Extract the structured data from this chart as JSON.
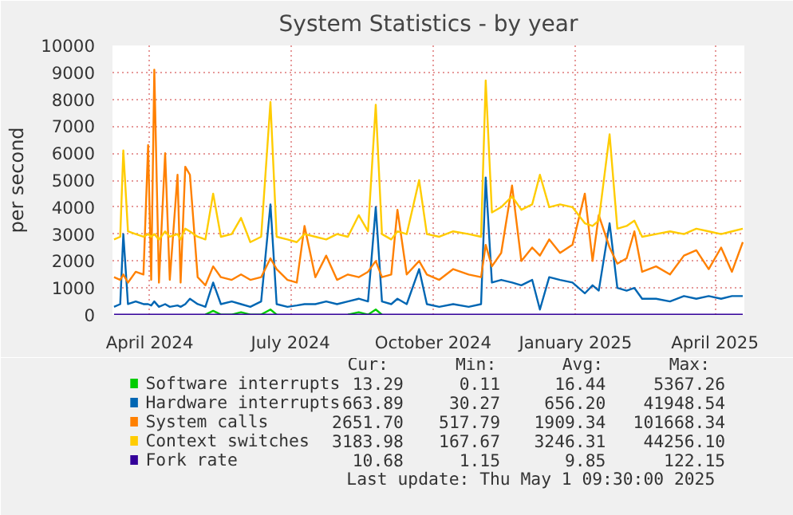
{
  "chart_data": {
    "type": "line",
    "title": "System Statistics - by year",
    "ylabel": "per second",
    "x": [
      "2024-03-09",
      "2024-03-13",
      "2024-03-15",
      "2024-03-18",
      "2024-03-23",
      "2024-03-28",
      "2024-03-31",
      "2024-04-02",
      "2024-04-04",
      "2024-04-07",
      "2024-04-11",
      "2024-04-14",
      "2024-04-19",
      "2024-04-21",
      "2024-04-24",
      "2024-04-27",
      "2024-05-02",
      "2024-05-07",
      "2024-05-12",
      "2024-05-17",
      "2024-05-24",
      "2024-05-30",
      "2024-06-05",
      "2024-06-12",
      "2024-06-18",
      "2024-06-22",
      "2024-06-29",
      "2024-07-05",
      "2024-07-10",
      "2024-07-17",
      "2024-07-24",
      "2024-07-31",
      "2024-08-07",
      "2024-08-14",
      "2024-08-20",
      "2024-08-25",
      "2024-08-29",
      "2024-09-04",
      "2024-09-08",
      "2024-09-14",
      "2024-09-22",
      "2024-09-27",
      "2024-10-05",
      "2024-10-14",
      "2024-10-24",
      "2024-11-01",
      "2024-11-04",
      "2024-11-08",
      "2024-11-14",
      "2024-11-21",
      "2024-11-27",
      "2024-12-04",
      "2024-12-09",
      "2024-12-15",
      "2024-12-22",
      "2024-12-30",
      "2025-01-07",
      "2025-01-12",
      "2025-01-16",
      "2025-01-23",
      "2025-01-28",
      "2025-02-03",
      "2025-02-08",
      "2025-02-13",
      "2025-02-22",
      "2025-03-03",
      "2025-03-12",
      "2025-03-20",
      "2025-03-28",
      "2025-04-05",
      "2025-04-12",
      "2025-04-19"
    ],
    "series": [
      {
        "name": "Software interrupts",
        "color": "#00cc00",
        "x": [
          "2024-05-07",
          "2024-05-12",
          "2024-05-17",
          "2024-05-24",
          "2024-05-30",
          "2024-06-05",
          "2024-06-12",
          "2024-06-18",
          "2024-06-22",
          "2024-06-25",
          "2024-08-07",
          "2024-08-14",
          "2024-08-20",
          "2024-08-25",
          "2024-08-29"
        ],
        "values": [
          10,
          150,
          10,
          10,
          100,
          10,
          10,
          200,
          10,
          null,
          10,
          100,
          10,
          200,
          10
        ]
      },
      {
        "name": "Hardware interrupts",
        "color": "#0066b3",
        "values": [
          300,
          400,
          3000,
          400,
          500,
          400,
          400,
          350,
          500,
          300,
          400,
          300,
          350,
          300,
          400,
          600,
          400,
          300,
          1200,
          400,
          500,
          400,
          300,
          500,
          4100,
          400,
          300,
          350,
          400,
          400,
          500,
          400,
          500,
          600,
          500,
          4000,
          500,
          400,
          600,
          400,
          1700,
          400,
          300,
          400,
          300,
          400,
          5100,
          1200,
          1300,
          1200,
          1100,
          1300,
          200,
          1400,
          1300,
          1200,
          800,
          1100,
          900,
          3400,
          1000,
          900,
          1000,
          600,
          600,
          500,
          700,
          600,
          700,
          600,
          700,
          700
        ]
      },
      {
        "name": "System calls",
        "color": "#ff8000",
        "values": [
          1400,
          1300,
          1500,
          1200,
          1600,
          1500,
          6300,
          1300,
          9100,
          1200,
          6000,
          1300,
          5200,
          1200,
          5500,
          5200,
          1400,
          1100,
          1800,
          1400,
          1300,
          1500,
          1300,
          1400,
          2100,
          1700,
          1300,
          1200,
          3300,
          1400,
          2200,
          1300,
          1500,
          1400,
          1600,
          2000,
          1400,
          1500,
          3900,
          1500,
          2000,
          1500,
          1300,
          1700,
          1500,
          1400,
          2600,
          1800,
          2300,
          4800,
          2000,
          2500,
          2200,
          2800,
          2300,
          2600,
          4500,
          2000,
          3700,
          2500,
          1900,
          2100,
          3100,
          1600,
          1800,
          1500,
          2200,
          2400,
          1700,
          2500,
          1600,
          2700
        ]
      },
      {
        "name": "Context switches",
        "color": "#ffcc00",
        "values": [
          2800,
          2900,
          6100,
          3100,
          3000,
          2900,
          3000,
          2900,
          3000,
          2800,
          3100,
          2900,
          3000,
          2800,
          3200,
          3100,
          2900,
          2800,
          4500,
          2900,
          3000,
          3600,
          2700,
          2900,
          7900,
          2900,
          2800,
          2700,
          3000,
          2900,
          2800,
          3000,
          2900,
          3700,
          3100,
          7800,
          3000,
          2800,
          3100,
          3000,
          5000,
          3000,
          2900,
          3100,
          3000,
          2900,
          8700,
          3800,
          4000,
          4400,
          3900,
          4100,
          5200,
          4000,
          4100,
          4000,
          3400,
          3300,
          3500,
          6700,
          3200,
          3300,
          3500,
          2900,
          3000,
          3100,
          3000,
          3200,
          3100,
          3000,
          3100,
          3200
        ]
      },
      {
        "name": "Fork rate",
        "color": "#330099",
        "values": [
          10,
          10,
          10,
          10,
          10,
          10,
          10,
          10,
          10,
          10,
          10,
          10,
          10,
          10,
          10,
          10,
          10,
          10,
          10,
          10,
          10,
          10,
          10,
          10,
          10,
          10,
          10,
          10,
          10,
          10,
          10,
          10,
          10,
          10,
          10,
          10,
          10,
          10,
          10,
          10,
          10,
          10,
          10,
          10,
          10,
          10,
          10,
          10,
          10,
          10,
          10,
          10,
          10,
          10,
          10,
          10,
          10,
          10,
          10,
          10,
          10,
          10,
          10,
          10,
          10,
          10,
          10,
          10,
          10,
          10,
          10,
          10
        ]
      }
    ],
    "xlim": [
      "2024-03-08",
      "2025-04-20"
    ],
    "xticks": [
      {
        "value": "2024-04-01",
        "label": "April 2024"
      },
      {
        "value": "2024-07-01",
        "label": "July 2024"
      },
      {
        "value": "2024-10-01",
        "label": "October 2024"
      },
      {
        "value": "2025-01-01",
        "label": "January 2025"
      },
      {
        "value": "2025-04-01",
        "label": "April 2025"
      }
    ],
    "ylim": [
      0,
      10000
    ],
    "yticks": [
      0,
      1000,
      2000,
      3000,
      4000,
      5000,
      6000,
      7000,
      8000,
      9000,
      10000
    ],
    "grid": true,
    "legend": "bottom",
    "line_style": "solid",
    "marker": "none",
    "annotations": [
      "Cur:",
      "Min:",
      "Avg:",
      "Max:",
      "13.29",
      "0.11",
      "16.44",
      "5367.26",
      "663.89",
      "30.27",
      "656.20",
      "41948.54",
      "2651.70",
      "517.79",
      "1909.34",
      "101668.34",
      "3183.98",
      "167.67",
      "3246.31",
      "44256.10",
      "10.68",
      "1.15",
      "9.85",
      "122.15",
      "Last update: Thu May  1 09:30:00 2025"
    ]
  }
}
